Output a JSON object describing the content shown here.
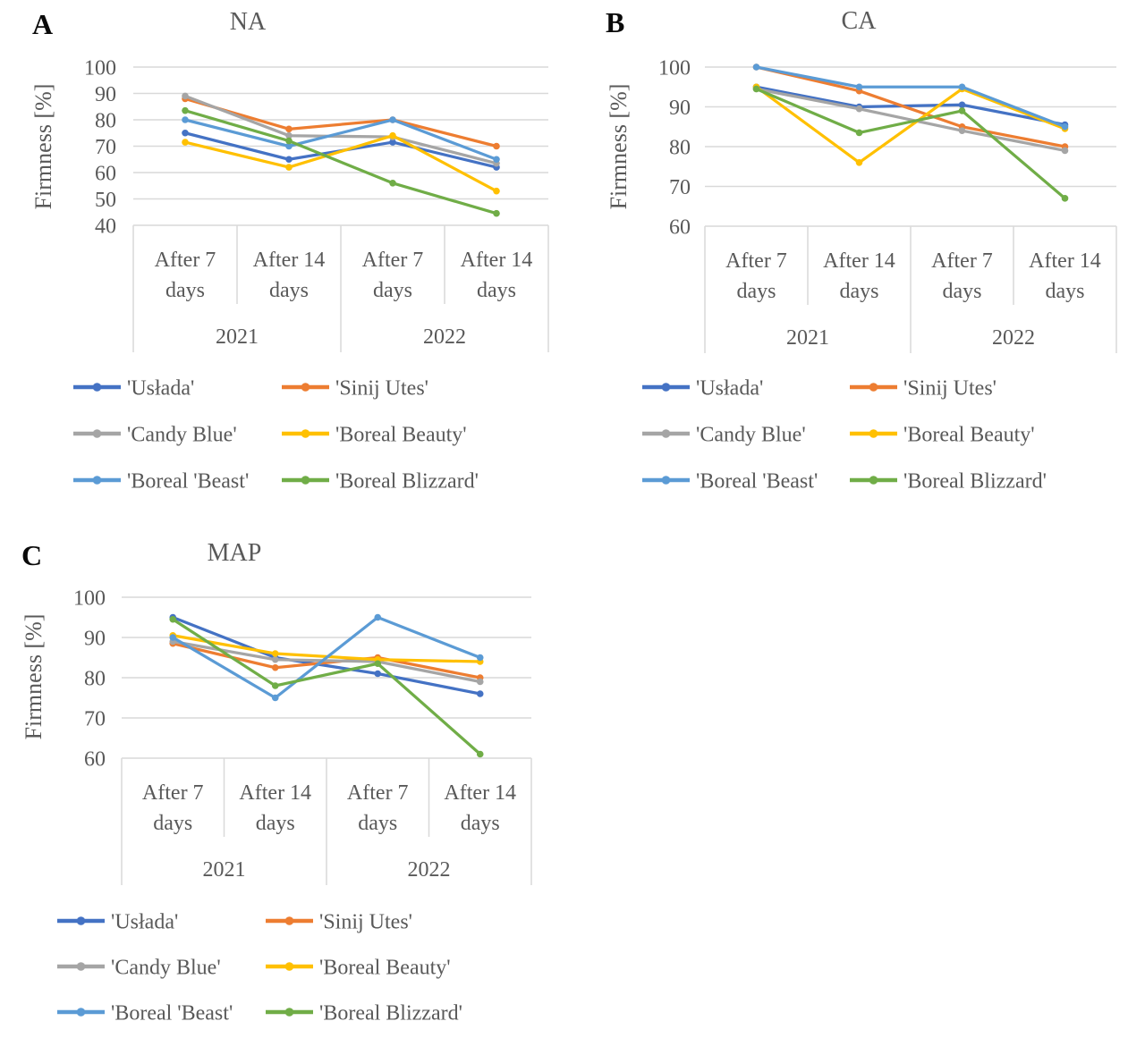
{
  "figure": {
    "ylabel": "Firmness [%]",
    "category_lines": [
      [
        "After 7",
        "days"
      ],
      [
        "After 14",
        "days"
      ],
      [
        "After 7",
        "days"
      ],
      [
        "After 14",
        "days"
      ]
    ],
    "years": [
      "2021",
      "2022"
    ],
    "grid_color": "#d9d9d9",
    "text_color": "#595959"
  },
  "chart_data": [
    {
      "panel_label": "A",
      "type": "line",
      "title": "NA",
      "ylabel": "Firmness [%]",
      "ylim": [
        40,
        100
      ],
      "yticks": [
        100,
        90,
        80,
        70,
        60,
        50,
        40
      ],
      "grid": true,
      "legend_position": "bottom",
      "categories": [
        "After 7 days",
        "After 14 days",
        "After 7 days",
        "After 14 days"
      ],
      "category_lines": [
        [
          "After 7",
          "days"
        ],
        [
          "After 14",
          "days"
        ],
        [
          "After 7",
          "days"
        ],
        [
          "After 14",
          "days"
        ]
      ],
      "year_groups": [
        "2021",
        "2022"
      ],
      "series": [
        {
          "name": "'Usłada'",
          "color": "#4472C4",
          "values": [
            75,
            65,
            71.5,
            62
          ]
        },
        {
          "name": "'Sinij Utes'",
          "color": "#ED7D31",
          "values": [
            88,
            76.5,
            80,
            70
          ]
        },
        {
          "name": "'Candy Blue'",
          "color": "#A5A5A5",
          "values": [
            89,
            74,
            73.5,
            63.5
          ]
        },
        {
          "name": "'Boreal Beauty'",
          "color": "#FFC000",
          "values": [
            71.5,
            62,
            74,
            53
          ]
        },
        {
          "name": "'Boreal 'Beast'",
          "color": "#5B9BD5",
          "values": [
            80,
            70,
            80,
            65
          ]
        },
        {
          "name": "'Boreal Blizzard'",
          "color": "#70AD47",
          "values": [
            83.5,
            72,
            56,
            44.5
          ]
        }
      ]
    },
    {
      "panel_label": "B",
      "type": "line",
      "title": "CA",
      "ylabel": "Firmness [%]",
      "ylim": [
        60,
        100
      ],
      "yticks": [
        100,
        90,
        80,
        70,
        60
      ],
      "grid": true,
      "legend_position": "bottom",
      "categories": [
        "After 7 days",
        "After 14 days",
        "After 7 days",
        "After 14 days"
      ],
      "category_lines": [
        [
          "After 7",
          "days"
        ],
        [
          "After 14",
          "days"
        ],
        [
          "After 7",
          "days"
        ],
        [
          "After 14",
          "days"
        ]
      ],
      "year_groups": [
        "2021",
        "2022"
      ],
      "series": [
        {
          "name": "'Usłada'",
          "color": "#4472C4",
          "values": [
            95,
            90,
            90.5,
            85.5
          ]
        },
        {
          "name": "'Sinij Utes'",
          "color": "#ED7D31",
          "values": [
            100,
            94,
            85,
            80
          ]
        },
        {
          "name": "'Candy Blue'",
          "color": "#A5A5A5",
          "values": [
            94.5,
            89.5,
            84,
            79
          ]
        },
        {
          "name": "'Boreal Beauty'",
          "color": "#FFC000",
          "values": [
            95,
            76,
            94.5,
            84.5
          ]
        },
        {
          "name": "'Boreal 'Beast'",
          "color": "#5B9BD5",
          "values": [
            100,
            95,
            95,
            85
          ]
        },
        {
          "name": "'Boreal Blizzard'",
          "color": "#70AD47",
          "values": [
            94.5,
            83.5,
            89,
            67
          ]
        }
      ]
    },
    {
      "panel_label": "C",
      "type": "line",
      "title": "MAP",
      "ylabel": "Firmness [%]",
      "ylim": [
        60,
        100
      ],
      "yticks": [
        100,
        90,
        80,
        70,
        60
      ],
      "grid": true,
      "legend_position": "bottom",
      "categories": [
        "After 7 days",
        "After 14 days",
        "After 7 days",
        "After 14 days"
      ],
      "category_lines": [
        [
          "After 7",
          "days"
        ],
        [
          "After 14",
          "days"
        ],
        [
          "After 7",
          "days"
        ],
        [
          "After 14",
          "days"
        ]
      ],
      "year_groups": [
        "2021",
        "2022"
      ],
      "series": [
        {
          "name": "'Usłada'",
          "color": "#4472C4",
          "values": [
            95,
            85,
            81,
            76
          ]
        },
        {
          "name": "'Sinij Utes'",
          "color": "#ED7D31",
          "values": [
            88.5,
            82.5,
            85,
            80
          ]
        },
        {
          "name": "'Candy Blue'",
          "color": "#A5A5A5",
          "values": [
            89,
            84.5,
            84,
            79
          ]
        },
        {
          "name": "'Boreal Beauty'",
          "color": "#FFC000",
          "values": [
            90.5,
            86,
            84.5,
            84
          ]
        },
        {
          "name": "'Boreal 'Beast'",
          "color": "#5B9BD5",
          "values": [
            90,
            75,
            95,
            85
          ]
        },
        {
          "name": "'Boreal Blizzard'",
          "color": "#70AD47",
          "values": [
            94.5,
            78,
            83.5,
            61
          ]
        }
      ]
    }
  ]
}
